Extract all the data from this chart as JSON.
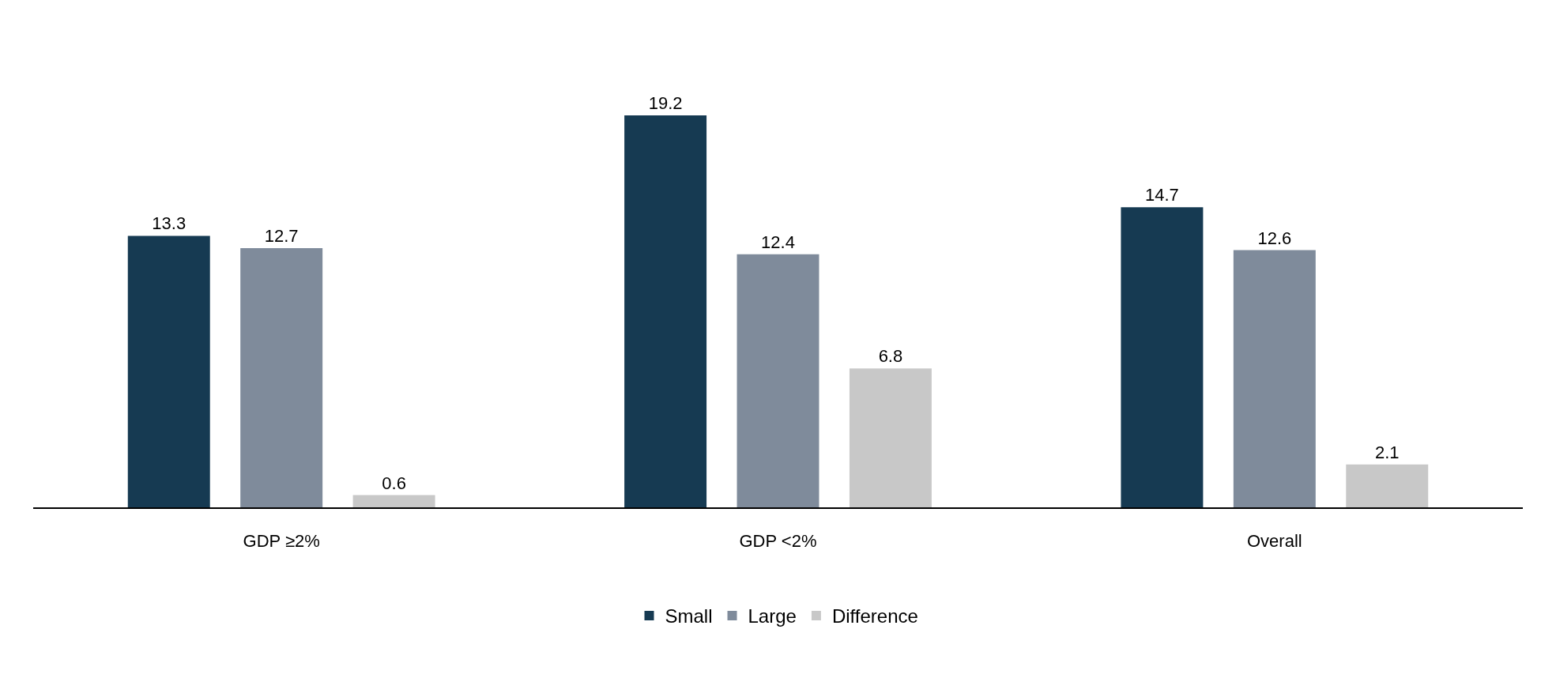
{
  "chart_data": {
    "type": "bar",
    "categories": [
      "GDP ≥2%",
      "GDP <2%",
      "Overall"
    ],
    "series": [
      {
        "name": "Small",
        "color": "#163a52",
        "values": [
          13.3,
          19.2,
          14.7
        ]
      },
      {
        "name": "Large",
        "color": "#7f8b9b",
        "values": [
          12.7,
          12.4,
          12.6
        ]
      },
      {
        "name": "Difference",
        "color": "#c8c8c8",
        "values": [
          0.6,
          6.8,
          2.1
        ]
      }
    ],
    "data_labels": true,
    "grid": false,
    "legend": "bottom"
  }
}
